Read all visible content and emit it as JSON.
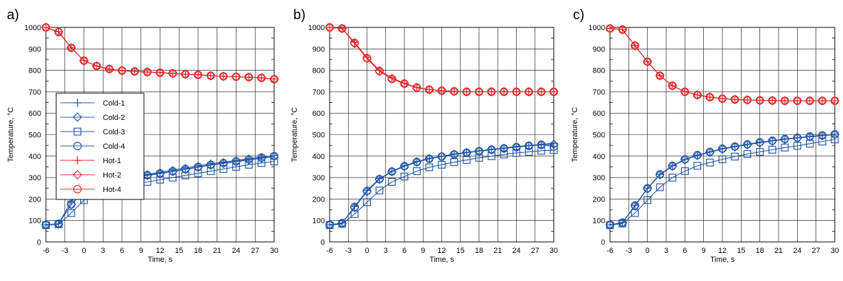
{
  "colors": {
    "cold": "#2156a8",
    "hot": "#e0282a",
    "grid": "#000000"
  },
  "chart_data": [
    {
      "type": "line",
      "panel_label": "a)",
      "xlabel": "Time, s",
      "ylabel": "Temperature, °C",
      "xlim": [
        -6,
        30
      ],
      "ylim": [
        0,
        1000
      ],
      "xticks": [
        -6,
        -3,
        0,
        3,
        6,
        9,
        12,
        15,
        18,
        21,
        24,
        27,
        30
      ],
      "yticks": [
        0,
        100,
        200,
        300,
        400,
        500,
        600,
        700,
        800,
        900,
        1000
      ],
      "grid": true,
      "legend": "left-middle",
      "x": [
        -6,
        -4,
        -2,
        0,
        2,
        4,
        6,
        8,
        10,
        12,
        14,
        16,
        18,
        20,
        22,
        24,
        26,
        28,
        30
      ],
      "series": [
        {
          "name": "Cold-1",
          "group": "cold",
          "marker": "plus",
          "values": [
            80,
            85,
            190,
            245,
            270,
            285,
            295,
            305,
            315,
            325,
            335,
            345,
            355,
            365,
            372,
            380,
            388,
            395,
            402
          ]
        },
        {
          "name": "Cold-2",
          "group": "cold",
          "marker": "diamond",
          "values": [
            80,
            84,
            175,
            235,
            262,
            280,
            292,
            300,
            310,
            318,
            328,
            338,
            348,
            358,
            366,
            374,
            382,
            390,
            398
          ]
        },
        {
          "name": "Cold-3",
          "group": "cold",
          "marker": "square",
          "values": [
            78,
            82,
            135,
            195,
            225,
            245,
            260,
            270,
            280,
            290,
            300,
            310,
            320,
            330,
            340,
            350,
            360,
            368,
            375
          ]
        },
        {
          "name": "Cold-4",
          "group": "cold",
          "marker": "circle",
          "values": [
            80,
            85,
            175,
            240,
            268,
            283,
            293,
            303,
            312,
            320,
            330,
            340,
            350,
            360,
            368,
            376,
            385,
            393,
            400
          ]
        },
        {
          "name": "Hot-1",
          "group": "hot",
          "marker": "plus",
          "values": [
            1000,
            980,
            905,
            845,
            820,
            805,
            798,
            795,
            792,
            790,
            785,
            782,
            780,
            775,
            772,
            770,
            768,
            765,
            760
          ]
        },
        {
          "name": "Hot-2",
          "group": "hot",
          "marker": "diamond",
          "values": [
            1000,
            980,
            905,
            845,
            820,
            806,
            799,
            795,
            792,
            789,
            785,
            782,
            779,
            775,
            772,
            770,
            768,
            765,
            759
          ]
        },
        {
          "name": "Hot-4",
          "group": "hot",
          "marker": "circle",
          "values": [
            1000,
            978,
            905,
            845,
            820,
            806,
            799,
            795,
            792,
            789,
            786,
            782,
            779,
            775,
            772,
            770,
            768,
            765,
            758
          ]
        }
      ]
    },
    {
      "type": "line",
      "panel_label": "b)",
      "xlabel": "Time, s",
      "ylabel": "Temperature, °C",
      "xlim": [
        -6,
        30
      ],
      "ylim": [
        0,
        1000
      ],
      "xticks": [
        -6,
        -3,
        0,
        3,
        6,
        9,
        12,
        15,
        18,
        21,
        24,
        27,
        30
      ],
      "yticks": [
        0,
        100,
        200,
        300,
        400,
        500,
        600,
        700,
        800,
        900,
        1000
      ],
      "grid": true,
      "x": [
        -6,
        -4,
        -2,
        0,
        2,
        4,
        6,
        8,
        10,
        12,
        14,
        16,
        18,
        20,
        22,
        24,
        26,
        28,
        30
      ],
      "series": [
        {
          "name": "Cold-1",
          "group": "cold",
          "marker": "plus",
          "values": [
            80,
            88,
            165,
            240,
            295,
            330,
            355,
            375,
            390,
            400,
            410,
            418,
            425,
            432,
            438,
            445,
            450,
            455,
            460
          ]
        },
        {
          "name": "Cold-2",
          "group": "cold",
          "marker": "diamond",
          "values": [
            80,
            87,
            160,
            235,
            292,
            328,
            352,
            372,
            388,
            398,
            408,
            416,
            423,
            430,
            436,
            442,
            448,
            452,
            455
          ]
        },
        {
          "name": "Cold-3",
          "group": "cold",
          "marker": "square",
          "values": [
            78,
            84,
            130,
            185,
            240,
            280,
            305,
            330,
            348,
            360,
            372,
            382,
            392,
            400,
            408,
            415,
            420,
            425,
            428
          ]
        },
        {
          "name": "Cold-4",
          "group": "cold",
          "marker": "circle",
          "values": [
            80,
            88,
            163,
            238,
            293,
            328,
            353,
            373,
            388,
            398,
            408,
            416,
            423,
            430,
            436,
            442,
            448,
            453,
            445
          ]
        },
        {
          "name": "Hot-1",
          "group": "hot",
          "marker": "plus",
          "values": [
            1000,
            995,
            930,
            860,
            800,
            765,
            740,
            720,
            710,
            705,
            702,
            700,
            700,
            700,
            700,
            700,
            700,
            700,
            700
          ]
        },
        {
          "name": "Hot-2",
          "group": "hot",
          "marker": "diamond",
          "values": [
            1000,
            995,
            925,
            855,
            795,
            760,
            738,
            718,
            710,
            705,
            702,
            700,
            700,
            700,
            700,
            700,
            700,
            700,
            700
          ]
        },
        {
          "name": "Hot-4",
          "group": "hot",
          "marker": "circle",
          "values": [
            1000,
            995,
            928,
            857,
            797,
            760,
            738,
            720,
            710,
            705,
            702,
            700,
            700,
            700,
            700,
            700,
            700,
            700,
            700
          ]
        }
      ]
    },
    {
      "type": "line",
      "panel_label": "c)",
      "xlabel": "Time, s",
      "ylabel": "Temperature, °C",
      "xlim": [
        -6,
        30
      ],
      "ylim": [
        0,
        1000
      ],
      "xticks": [
        -6,
        -3,
        0,
        3,
        6,
        9,
        12,
        15,
        18,
        21,
        24,
        27,
        30
      ],
      "yticks": [
        0,
        100,
        200,
        300,
        400,
        500,
        600,
        700,
        800,
        900,
        1000
      ],
      "grid": true,
      "x": [
        -6,
        -4,
        -2,
        0,
        2,
        4,
        6,
        8,
        10,
        12,
        14,
        16,
        18,
        20,
        22,
        24,
        26,
        28,
        30
      ],
      "series": [
        {
          "name": "Cold-1",
          "group": "cold",
          "marker": "plus",
          "values": [
            80,
            90,
            170,
            250,
            315,
            355,
            385,
            405,
            420,
            435,
            445,
            455,
            465,
            472,
            480,
            486,
            492,
            497,
            502
          ]
        },
        {
          "name": "Cold-2",
          "group": "cold",
          "marker": "diamond",
          "values": [
            80,
            89,
            168,
            248,
            313,
            353,
            383,
            403,
            418,
            433,
            443,
            453,
            462,
            470,
            478,
            484,
            490,
            495,
            500
          ]
        },
        {
          "name": "Cold-3",
          "group": "cold",
          "marker": "square",
          "values": [
            78,
            86,
            135,
            195,
            255,
            300,
            330,
            355,
            370,
            385,
            398,
            410,
            420,
            430,
            440,
            448,
            458,
            468,
            478
          ]
        },
        {
          "name": "Cold-4",
          "group": "cold",
          "marker": "circle",
          "values": [
            80,
            90,
            170,
            250,
            315,
            355,
            385,
            405,
            420,
            435,
            445,
            455,
            465,
            472,
            480,
            486,
            492,
            497,
            502
          ]
        },
        {
          "name": "Hot-1",
          "group": "hot",
          "marker": "plus",
          "values": [
            995,
            990,
            915,
            840,
            775,
            728,
            700,
            685,
            675,
            668,
            664,
            662,
            660,
            659,
            658,
            658,
            658,
            658,
            658
          ]
        },
        {
          "name": "Hot-2",
          "group": "hot",
          "marker": "diamond",
          "values": [
            995,
            990,
            915,
            840,
            775,
            728,
            700,
            685,
            675,
            668,
            664,
            662,
            660,
            659,
            658,
            658,
            658,
            658,
            658
          ]
        },
        {
          "name": "Hot-4",
          "group": "hot",
          "marker": "circle",
          "values": [
            995,
            990,
            915,
            840,
            775,
            728,
            700,
            685,
            675,
            668,
            664,
            662,
            660,
            659,
            658,
            658,
            658,
            658,
            658
          ]
        }
      ]
    }
  ]
}
